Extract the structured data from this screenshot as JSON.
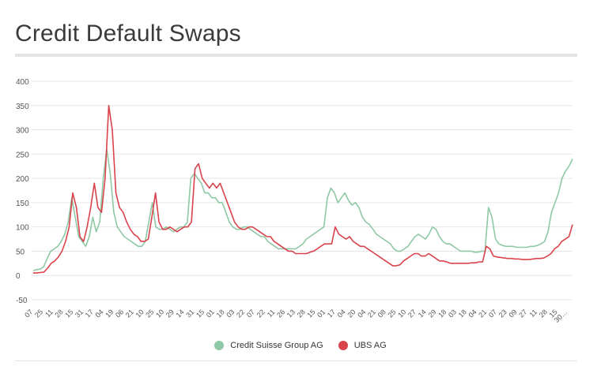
{
  "title": "Credit Default Swaps",
  "chart_data": {
    "type": "line",
    "title": "Credit Default Swaps",
    "xlabel": "",
    "ylabel": "",
    "ylim": [
      -50,
      400
    ],
    "yticks": [
      400,
      350,
      300,
      250,
      200,
      150,
      100,
      50,
      0,
      -50
    ],
    "grid": true,
    "legend_position": "bottom",
    "x_tick_labels": [
      "07",
      "25",
      "11",
      "28",
      "15",
      "31",
      "17",
      "04",
      "19",
      "06",
      "21",
      "10",
      "25",
      "10",
      "29",
      "14",
      "31",
      "15",
      "01",
      "18",
      "03",
      "22",
      "07",
      "22",
      "11",
      "26",
      "13",
      "28",
      "15",
      "01",
      "17",
      "04",
      "20",
      "04",
      "21",
      "08",
      "25",
      "10",
      "27",
      "14",
      "29",
      "18",
      "03",
      "18",
      "04",
      "21",
      "07",
      "23",
      "09",
      "27",
      "11",
      "28",
      "15",
      "30…"
    ],
    "series": [
      {
        "name": "Credit Suisse Group AG",
        "color": "#8fc8a4",
        "values": [
          10,
          12,
          13,
          18,
          35,
          50,
          55,
          60,
          70,
          85,
          110,
          160,
          120,
          80,
          70,
          60,
          80,
          120,
          90,
          110,
          200,
          260,
          210,
          130,
          100,
          90,
          80,
          75,
          70,
          65,
          60,
          60,
          70,
          110,
          150,
          100,
          95,
          95,
          100,
          95,
          90,
          95,
          100,
          100,
          110,
          200,
          210,
          200,
          190,
          170,
          170,
          160,
          160,
          150,
          150,
          130,
          110,
          100,
          95,
          95,
          100,
          100,
          95,
          90,
          85,
          80,
          80,
          70,
          65,
          60,
          55,
          55,
          55,
          55,
          55,
          55,
          60,
          65,
          75,
          80,
          85,
          90,
          95,
          100,
          160,
          180,
          170,
          150,
          160,
          170,
          155,
          145,
          150,
          140,
          120,
          110,
          105,
          95,
          85,
          80,
          75,
          70,
          65,
          55,
          50,
          50,
          55,
          60,
          70,
          80,
          85,
          80,
          75,
          85,
          100,
          95,
          80,
          70,
          65,
          65,
          60,
          55,
          50,
          50,
          50,
          50,
          48,
          48,
          50,
          50,
          140,
          120,
          75,
          65,
          62,
          60,
          60,
          60,
          58,
          58,
          58,
          58,
          60,
          60,
          62,
          65,
          70,
          90,
          130,
          150,
          170,
          200,
          215,
          225,
          240
        ]
      },
      {
        "name": "UBS AG",
        "color": "#d9434b",
        "values": [
          5,
          5,
          6,
          7,
          15,
          25,
          30,
          38,
          50,
          70,
          100,
          170,
          140,
          80,
          70,
          100,
          140,
          190,
          140,
          130,
          200,
          350,
          300,
          170,
          140,
          130,
          110,
          95,
          85,
          80,
          70,
          70,
          75,
          120,
          170,
          110,
          95,
          95,
          100,
          95,
          90,
          95,
          100,
          100,
          110,
          220,
          230,
          200,
          190,
          180,
          190,
          180,
          190,
          170,
          150,
          130,
          110,
          100,
          95,
          95,
          100,
          100,
          95,
          90,
          85,
          80,
          80,
          70,
          65,
          60,
          55,
          50,
          50,
          45,
          45,
          45,
          45,
          48,
          50,
          55,
          60,
          65,
          65,
          65,
          100,
          85,
          80,
          75,
          80,
          70,
          65,
          60,
          60,
          55,
          50,
          45,
          40,
          35,
          30,
          25,
          20,
          20,
          22,
          30,
          35,
          40,
          45,
          45,
          40,
          40,
          45,
          40,
          35,
          30,
          30,
          28,
          25,
          25,
          25,
          25,
          25,
          25,
          26,
          26,
          28,
          28,
          60,
          55,
          40,
          38,
          37,
          36,
          35,
          35,
          34,
          34,
          33,
          33,
          33,
          34,
          35,
          35,
          36,
          40,
          45,
          55,
          60,
          70,
          75,
          80,
          105
        ]
      }
    ]
  }
}
